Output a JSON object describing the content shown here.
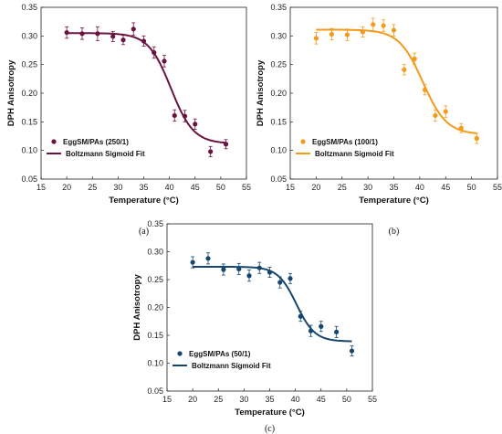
{
  "chart_data": [
    {
      "type": "scatter",
      "panel_label": "(a)",
      "xlabel": "Temperature (°C)",
      "ylabel": "DPH Anisotropy",
      "xlim": [
        15,
        55
      ],
      "ylim": [
        0.05,
        0.35
      ],
      "xticks": [
        "15",
        "20",
        "25",
        "30",
        "35",
        "40",
        "45",
        "50",
        "55"
      ],
      "yticks": [
        "0.05",
        "0.10",
        "0.15",
        "0.20",
        "0.25",
        "0.30",
        "0.35"
      ],
      "grid": false,
      "legend_position": "bottom-left",
      "color": "#6b1340",
      "series": [
        {
          "name": "EggSM/PAs (250/1)",
          "kind": "points",
          "x": [
            20,
            23,
            26,
            29,
            31,
            33,
            35,
            37,
            39,
            41,
            43,
            45,
            48,
            51
          ],
          "y": [
            0.306,
            0.304,
            0.304,
            0.299,
            0.293,
            0.312,
            0.291,
            0.271,
            0.256,
            0.161,
            0.16,
            0.146,
            0.098,
            0.111
          ],
          "error": [
            0.01,
            0.01,
            0.012,
            0.009,
            0.008,
            0.011,
            0.009,
            0.01,
            0.01,
            0.01,
            0.01,
            0.009,
            0.009,
            0.008
          ]
        },
        {
          "name": "Boltzmann Sigmoid Fit",
          "kind": "fit",
          "fit": {
            "top": 0.305,
            "bottom": 0.112,
            "x0": 40.3,
            "dx": 2.2
          },
          "x_range": [
            20,
            51
          ]
        }
      ]
    },
    {
      "type": "scatter",
      "panel_label": "(b)",
      "xlabel": "Temperature (°C)",
      "ylabel": "DPH Anisotropy",
      "xlim": [
        15,
        55
      ],
      "ylim": [
        0.05,
        0.35
      ],
      "xticks": [
        "15",
        "20",
        "25",
        "30",
        "35",
        "40",
        "45",
        "50",
        "55"
      ],
      "yticks": [
        "0.05",
        "0.10",
        "0.15",
        "0.20",
        "0.25",
        "0.30",
        "0.35"
      ],
      "grid": false,
      "legend_position": "bottom-left",
      "color": "#f39a1c",
      "series": [
        {
          "name": "EggSM/PAs (100/1)",
          "kind": "points",
          "x": [
            20,
            23,
            26,
            29,
            31,
            33,
            35,
            37,
            39,
            41,
            43,
            45,
            48,
            51
          ],
          "y": [
            0.296,
            0.303,
            0.302,
            0.307,
            0.32,
            0.318,
            0.31,
            0.241,
            0.26,
            0.206,
            0.161,
            0.168,
            0.139,
            0.121
          ],
          "error": [
            0.01,
            0.01,
            0.01,
            0.009,
            0.011,
            0.01,
            0.01,
            0.009,
            0.01,
            0.009,
            0.01,
            0.01,
            0.008,
            0.009
          ]
        },
        {
          "name": "Boltzmann Sigmoid Fit",
          "kind": "fit",
          "fit": {
            "top": 0.311,
            "bottom": 0.128,
            "x0": 40.6,
            "dx": 2.3
          },
          "x_range": [
            20,
            51
          ]
        }
      ]
    },
    {
      "type": "scatter",
      "panel_label": "(c)",
      "xlabel": "Temperature (°C)",
      "ylabel": "DPH Anisotropy",
      "xlim": [
        15,
        55
      ],
      "ylim": [
        0.05,
        0.35
      ],
      "xticks": [
        "15",
        "20",
        "25",
        "30",
        "35",
        "40",
        "45",
        "50",
        "55"
      ],
      "yticks": [
        "0.05",
        "0.10",
        "0.15",
        "0.20",
        "0.25",
        "0.30",
        "0.35"
      ],
      "grid": false,
      "legend_position": "bottom-left",
      "color": "#16466e",
      "series": [
        {
          "name": "EggSM/PAs (50/1)",
          "kind": "points",
          "x": [
            20,
            23,
            26,
            29,
            31,
            33,
            35,
            37,
            39,
            41,
            43,
            45,
            48,
            51
          ],
          "y": [
            0.281,
            0.288,
            0.268,
            0.269,
            0.257,
            0.271,
            0.263,
            0.245,
            0.252,
            0.184,
            0.158,
            0.166,
            0.156,
            0.122
          ],
          "error": [
            0.01,
            0.01,
            0.01,
            0.01,
            0.01,
            0.01,
            0.009,
            0.01,
            0.009,
            0.009,
            0.01,
            0.009,
            0.01,
            0.009
          ]
        },
        {
          "name": "Boltzmann Sigmoid Fit",
          "kind": "fit",
          "fit": {
            "top": 0.273,
            "bottom": 0.139,
            "x0": 40.2,
            "dx": 1.8
          },
          "x_range": [
            20,
            51
          ]
        }
      ]
    }
  ]
}
